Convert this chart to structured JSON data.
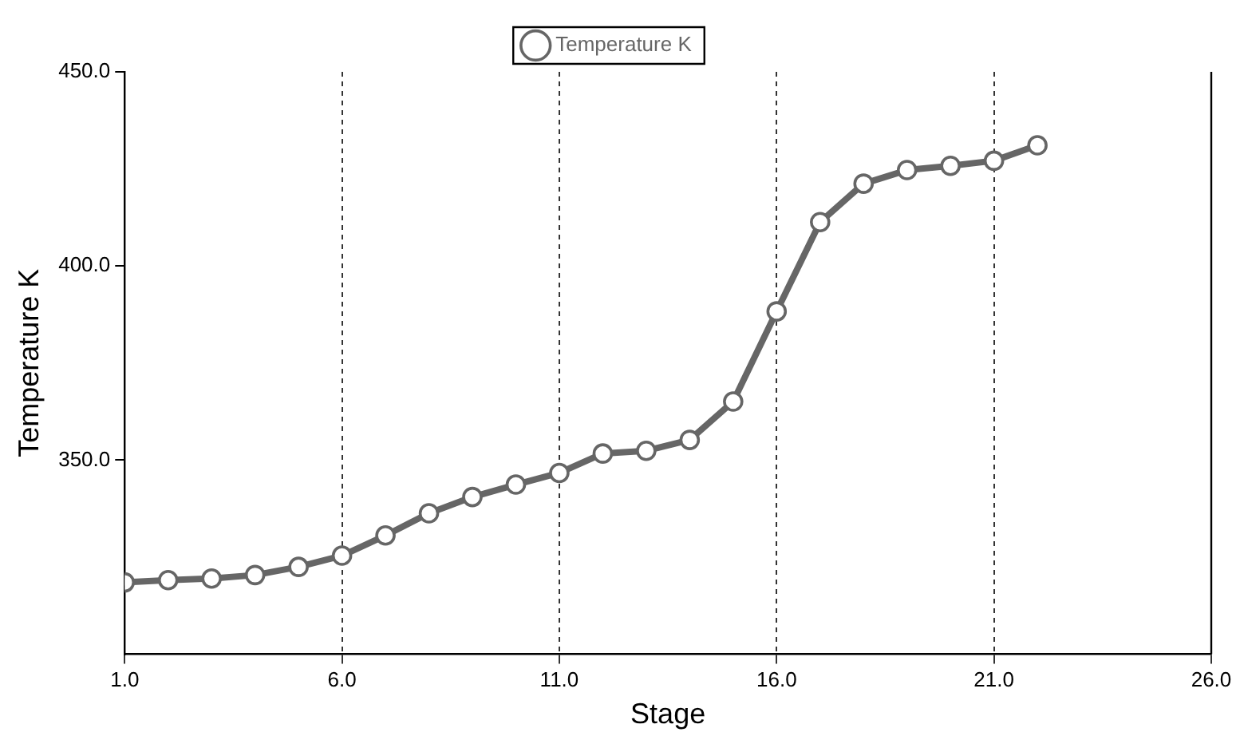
{
  "chart_data": {
    "type": "line",
    "xlabel": "Stage",
    "ylabel": "Temperature K",
    "x": [
      1,
      2,
      3,
      4,
      5,
      6,
      7,
      8,
      9,
      10,
      11,
      12,
      13,
      14,
      15,
      16,
      17,
      18,
      19,
      20,
      21,
      22
    ],
    "series": [
      {
        "name": "Temperature K",
        "color": "#666666",
        "values": [
          318.5,
          319.1,
          319.5,
          320.4,
          322.5,
          325.4,
          330.6,
          336.3,
          340.5,
          343.7,
          346.7,
          351.7,
          352.4,
          355.2,
          365.1,
          388.3,
          411.3,
          421.2,
          424.7,
          425.8,
          427.1,
          431.1
        ]
      }
    ],
    "xlim": [
      1,
      26
    ],
    "xticks": [
      {
        "value": 1,
        "label": "1.0"
      },
      {
        "value": 6,
        "label": "6.0"
      },
      {
        "value": 11,
        "label": "11.0"
      },
      {
        "value": 16,
        "label": "16.0"
      },
      {
        "value": 21,
        "label": "21.0"
      },
      {
        "value": 26,
        "label": "26.0"
      }
    ],
    "ylim": [
      300,
      450
    ],
    "yticks": [
      {
        "value": 350,
        "label": "350.0"
      },
      {
        "value": 400,
        "label": "400.0"
      },
      {
        "value": 450,
        "label": "450.0"
      }
    ],
    "grid": "x",
    "legend": "top",
    "marker": "circle",
    "line_style": "solid"
  }
}
